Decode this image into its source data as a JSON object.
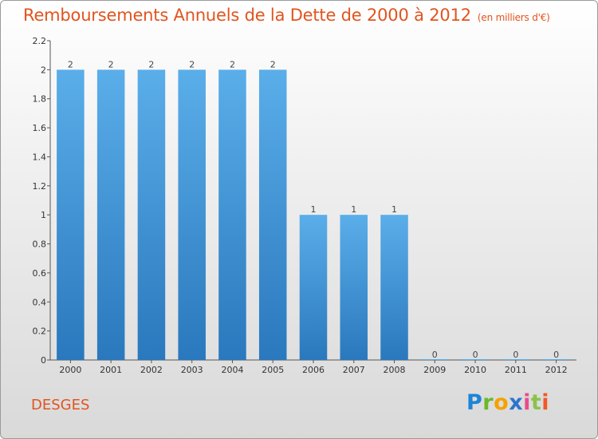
{
  "header": {
    "title": "Remboursements Annuels de la Dette de 2000 à 2012",
    "subtitle": "(en milliers d'€)"
  },
  "footer": {
    "commune": "DESGES",
    "logo_text": "Proxiti"
  },
  "colors": {
    "title": "#e2541f",
    "bar_top": "#5aaee9",
    "bar_bottom": "#2a78bd"
  },
  "chart_data": {
    "type": "bar",
    "title": "Remboursements Annuels de la Dette de 2000 à 2012",
    "subtitle": "(en milliers d'€)",
    "xlabel": "",
    "ylabel": "",
    "categories": [
      "2000",
      "2001",
      "2002",
      "2003",
      "2004",
      "2005",
      "2006",
      "2007",
      "2008",
      "2009",
      "2010",
      "2011",
      "2012"
    ],
    "values": [
      2,
      2,
      2,
      2,
      2,
      2,
      1,
      1,
      1,
      0,
      0,
      0,
      0
    ],
    "data_labels": [
      "2",
      "2",
      "2",
      "2",
      "2",
      "2",
      "1",
      "1",
      "1",
      "0",
      "0",
      "0",
      "0"
    ],
    "yticks": [
      0,
      0.2,
      0.4,
      0.6,
      0.8,
      1,
      1.2,
      1.4,
      1.6,
      1.8,
      2,
      2.2
    ],
    "ytick_labels": [
      "0",
      "0.2",
      "0.4",
      "0.6",
      "0.8",
      "1",
      "1.2",
      "1.4",
      "1.6",
      "1.8",
      "2",
      "2.2"
    ],
    "ylim": [
      0,
      2.2
    ],
    "grid": false,
    "legend": "none"
  }
}
